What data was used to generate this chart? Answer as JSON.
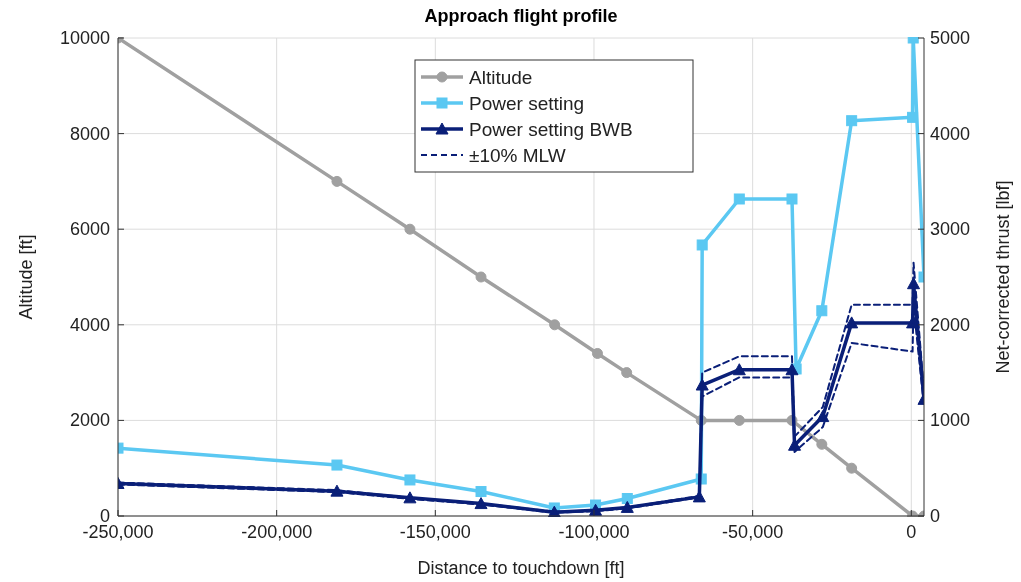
{
  "chart_data": {
    "type": "line",
    "title": "Approach flight profile",
    "xlabel": "Distance to touchdown [ft]",
    "ylabel": "Altitude [ft]",
    "y2label": "Net-corrected thrust [lbf]",
    "xlim": [
      -250000,
      4000
    ],
    "xticks": [
      {
        "value": -250000,
        "label": "-250,000"
      },
      {
        "value": -200000,
        "label": "-200,000"
      },
      {
        "value": -150000,
        "label": "-150,000"
      },
      {
        "value": -100000,
        "label": "-100,000"
      },
      {
        "value": -50000,
        "label": "-50,000"
      },
      0
    ],
    "ylim": [
      0,
      10000
    ],
    "yticks": [
      0,
      2000,
      4000,
      6000,
      8000,
      10000
    ],
    "y2lim": [
      0,
      5000
    ],
    "y2ticks": [
      0,
      1000,
      2000,
      3000,
      4000,
      5000
    ],
    "grid": true,
    "legend": "top",
    "series": [
      {
        "name": "Altitude",
        "color": "#a0a0a0",
        "marker": "circle",
        "line_style": "solid",
        "x": [
          -250000,
          -181000,
          -158000,
          -135600,
          -112400,
          -98900,
          -89700,
          -66200,
          -54200,
          -37600,
          -28200,
          -18800,
          400,
          4000
        ],
        "values": [
          10000,
          7000,
          6000,
          5000,
          4000,
          3400,
          3000,
          2000,
          2000,
          2000,
          1500,
          1000,
          0,
          0
        ]
      },
      {
        "name": "Power setting",
        "color": "#5bc8f2",
        "marker": "square",
        "line_style": "solid",
        "axis": "y2",
        "x": [
          -250000,
          -181000,
          -158000,
          -135600,
          -112500,
          -99500,
          -89500,
          -66200,
          -65900,
          -54200,
          -37600,
          -36300,
          -28200,
          -18800,
          400,
          600,
          4000
        ],
        "values": [
          710,
          533,
          377,
          256,
          84,
          115,
          183,
          387,
          2835,
          3316,
          3316,
          1538,
          2147,
          4135,
          4170,
          5000,
          2500
        ]
      },
      {
        "name": "Power setting BWB",
        "color": "#0a1f78",
        "marker": "triangle",
        "line_style": "solid",
        "axis": "y2",
        "x": [
          -250000,
          -181000,
          -158000,
          -135600,
          -112500,
          -99500,
          -89500,
          -66800,
          -65900,
          -54200,
          -37600,
          -36800,
          -27900,
          -18800,
          400,
          700,
          4000
        ],
        "values": [
          340,
          260,
          190,
          130,
          40,
          60,
          90,
          200,
          1370,
          1530,
          1530,
          740,
          1040,
          2020,
          2020,
          2430,
          1220
        ]
      },
      {
        "name": "±10% MLW",
        "color": "#0a1f78",
        "marker": "none",
        "line_style": "dashed",
        "axis": "y2",
        "x": [
          -250000,
          -181000,
          -158000,
          -135600,
          -112500,
          -99500,
          -89500,
          -66800,
          -65900,
          -54200,
          -37600,
          -36800,
          -27900,
          -18800,
          400,
          700,
          4000
        ],
        "values": [
          350,
          270,
          190,
          130,
          45,
          60,
          90,
          210,
          1500,
          1670,
          1670,
          830,
          1140,
          2210,
          2210,
          2650,
          1300
        ]
      },
      {
        "color": "#0a1f78",
        "marker": "none",
        "line_style": "dashed",
        "axis": "y2",
        "x": [
          -250000,
          -181000,
          -158000,
          -135600,
          -112500,
          -99500,
          -89500,
          -66800,
          -65900,
          -54200,
          -37600,
          -36800,
          -27900,
          -18800,
          400,
          700,
          4000
        ],
        "values": [
          330,
          250,
          180,
          120,
          35,
          50,
          80,
          195,
          1250,
          1450,
          1450,
          670,
          930,
          1810,
          1720,
          2200,
          1150
        ]
      }
    ]
  }
}
